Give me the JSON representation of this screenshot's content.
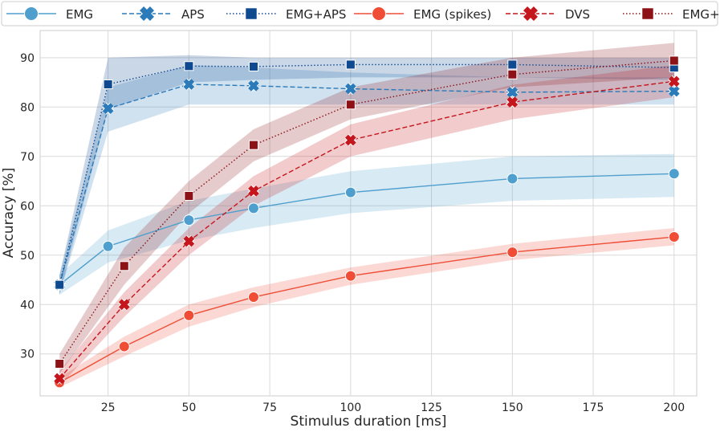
{
  "chart_data": {
    "type": "line",
    "title": "",
    "xlabel": "Stimulus duration [ms]",
    "ylabel": "Accuracy [%]",
    "xlim": [
      4,
      207
    ],
    "ylim": [
      21.5,
      95.5
    ],
    "xticks": [
      25,
      50,
      75,
      100,
      125,
      150,
      175,
      200
    ],
    "yticks": [
      30,
      40,
      50,
      60,
      70,
      80,
      90
    ],
    "grid": true,
    "legend_position": "top",
    "series": [
      {
        "name": "EMG",
        "color": "#4f9fce",
        "linestyle": "solid",
        "marker": "circle",
        "x": [
          10,
          25,
          50,
          70,
          100,
          150,
          200
        ],
        "y": [
          44.0,
          51.8,
          57.1,
          59.5,
          62.7,
          65.5,
          66.5
        ],
        "lower": [
          42.0,
          48.5,
          53.0,
          55.5,
          58.5,
          61.0,
          61.8
        ],
        "upper": [
          46.0,
          55.0,
          61.0,
          63.5,
          67.0,
          70.0,
          70.5
        ]
      },
      {
        "name": "APS",
        "color": "#2b7bba",
        "linestyle": "dashed",
        "marker": "x",
        "x": [
          10,
          25,
          50,
          70,
          100,
          150,
          200
        ],
        "y": [
          44.0,
          79.7,
          84.6,
          84.3,
          83.7,
          83.0,
          83.2
        ],
        "lower": [
          42.0,
          75.0,
          80.5,
          80.5,
          80.5,
          80.5,
          80.5
        ],
        "upper": [
          46.0,
          84.0,
          88.5,
          88.0,
          87.0,
          86.0,
          86.0
        ]
      },
      {
        "name": "EMG+APS",
        "color": "#0f4a91",
        "linestyle": "dotted",
        "marker": "square",
        "x": [
          10,
          25,
          50,
          70,
          100,
          150,
          200
        ],
        "y": [
          44.0,
          84.6,
          88.3,
          88.2,
          88.6,
          88.6,
          88.0
        ],
        "lower": [
          42.0,
          79.5,
          85.0,
          85.5,
          86.0,
          86.0,
          85.5
        ],
        "upper": [
          46.0,
          90.0,
          90.5,
          90.0,
          90.0,
          90.0,
          90.0
        ]
      },
      {
        "name": "EMG (spikes)",
        "color": "#ef4d36",
        "linestyle": "solid",
        "marker": "circle",
        "x": [
          10,
          30,
          50,
          70,
          100,
          150,
          200
        ],
        "y": [
          24.2,
          31.5,
          37.8,
          41.5,
          45.8,
          50.6,
          53.7
        ],
        "lower": [
          23.2,
          29.5,
          35.5,
          39.5,
          44.0,
          49.0,
          52.0
        ],
        "upper": [
          25.2,
          33.5,
          40.0,
          43.5,
          47.5,
          52.3,
          55.5
        ]
      },
      {
        "name": "DVS",
        "color": "#c4161c",
        "linestyle": "dashed",
        "marker": "x",
        "x": [
          10,
          30,
          50,
          70,
          100,
          150,
          200
        ],
        "y": [
          25.0,
          40.0,
          52.8,
          63.0,
          73.3,
          81.0,
          85.2
        ],
        "lower": [
          23.5,
          37.5,
          50.0,
          60.0,
          70.0,
          77.5,
          82.0
        ],
        "upper": [
          26.5,
          42.5,
          55.5,
          66.0,
          76.5,
          84.5,
          88.5
        ]
      },
      {
        "name": "EMG+DVS",
        "color": "#8c1217",
        "linestyle": "dotted",
        "marker": "square",
        "x": [
          10,
          30,
          50,
          70,
          100,
          150,
          200
        ],
        "y": [
          28.0,
          47.8,
          62.0,
          72.3,
          80.5,
          86.6,
          89.4
        ],
        "lower": [
          26.0,
          44.0,
          58.5,
          69.0,
          77.5,
          84.0,
          86.0
        ],
        "upper": [
          30.0,
          51.5,
          65.0,
          75.5,
          84.0,
          90.0,
          93.0
        ]
      }
    ]
  }
}
